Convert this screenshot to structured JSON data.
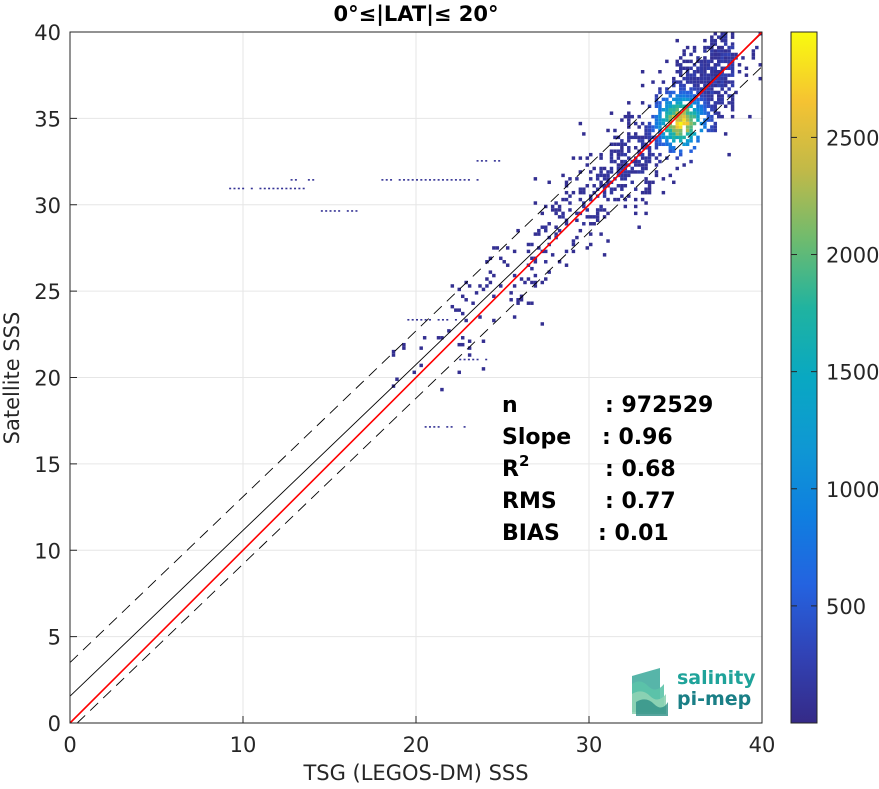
{
  "chart_data": {
    "type": "heatmap",
    "title": "0°≤|LAT|≤ 20°",
    "xlabel": "TSG (LEGOS-DM) SSS",
    "ylabel": "Satellite SSS",
    "xlim": [
      0,
      40
    ],
    "ylim": [
      0,
      40
    ],
    "xticks": [
      "0",
      "10",
      "20",
      "30",
      "40"
    ],
    "yticks": [
      "0",
      "5",
      "10",
      "15",
      "20",
      "25",
      "30",
      "35",
      "40"
    ],
    "grid": true,
    "colorbar": {
      "colormap": "parula",
      "range": [
        0,
        2950
      ],
      "ticks": [
        "500",
        "1000",
        "1500",
        "2000",
        "2500"
      ]
    },
    "lines": [
      {
        "kind": "identity",
        "color": "#ff0000",
        "slope": 1,
        "intercept": 0
      },
      {
        "kind": "regression",
        "color": "#000000",
        "slope": 0.96,
        "intercept": 1.55
      },
      {
        "kind": "upper-bound",
        "color": "#000000",
        "dashed": true,
        "slope": 0.96,
        "intercept": 3.5
      },
      {
        "kind": "lower-bound",
        "color": "#000000",
        "dashed": true,
        "slope": 0.96,
        "intercept": -0.4
      }
    ],
    "density": {
      "core_center": [
        35.2,
        34.7
      ],
      "peak_count": 2950
    },
    "stats": [
      {
        "label": "n",
        "value": ": 972529"
      },
      {
        "label": "Slope",
        "value": ": 0.96"
      },
      {
        "label": "R",
        "sup": "2",
        "value": ": 0.68"
      },
      {
        "label": "RMS",
        "value": ": 0.77"
      },
      {
        "label": "BIAS",
        "value": ": 0.01"
      }
    ]
  },
  "logo": {
    "line1": "salinity",
    "line2": "pi-mep"
  }
}
